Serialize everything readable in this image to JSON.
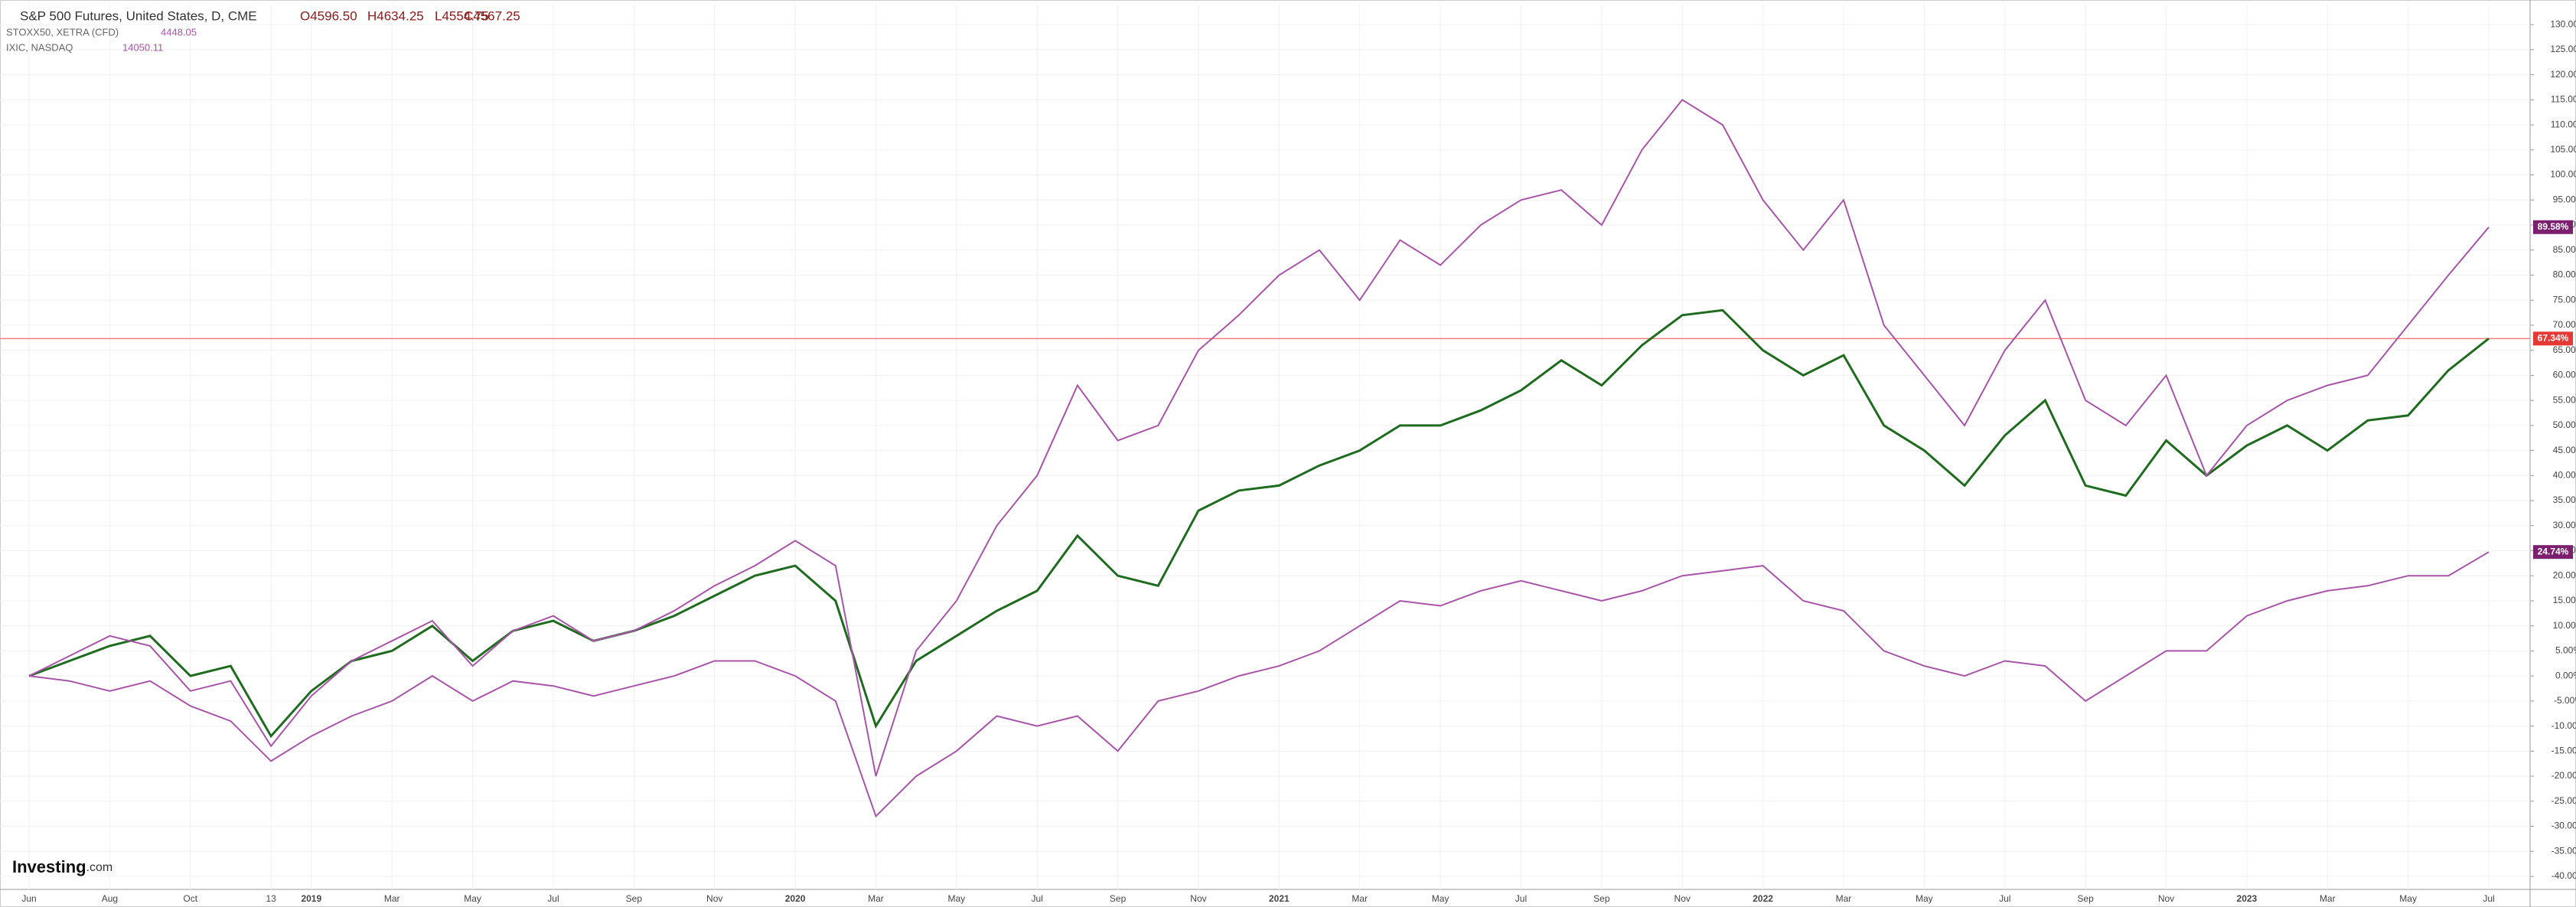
{
  "chart_data": {
    "type": "line",
    "header": {
      "title": "S&P 500 Futures, United States, D, CME",
      "open": "O4596.50",
      "high": "H4634.25",
      "low": "L4554.75",
      "close": "C4567.25",
      "stoxx_name": "STOXX50, XETRA (CFD)",
      "stoxx_price": "4448.05",
      "ixic_name": "IXIC, NASDAQ",
      "ixic_price": "14050.11"
    },
    "logo": {
      "brand": "Investing",
      "suffix": ".com"
    },
    "categories": [
      "Jun",
      null,
      "Aug",
      null,
      "Oct",
      null,
      "13",
      "2019",
      null,
      "Mar",
      null,
      "May",
      null,
      "Jul",
      null,
      "Sep",
      null,
      "Nov",
      null,
      "2020",
      null,
      "Mar",
      null,
      "May",
      null,
      "Jul",
      null,
      "Sep",
      null,
      "Nov",
      null,
      "2021",
      null,
      "Mar",
      null,
      "May",
      null,
      "Jul",
      null,
      "Sep",
      null,
      "Nov",
      null,
      "2022",
      null,
      "Mar",
      null,
      "May",
      null,
      "Jul",
      null,
      "Sep",
      null,
      "Nov",
      null,
      "2023",
      null,
      "Mar",
      null,
      "May",
      null,
      "Jul"
    ],
    "series": [
      {
        "name": "S&P 500 Futures",
        "color": "#1f6b1f",
        "last_label": "67.34%",
        "badge_color": "#e53935",
        "values": [
          0,
          3,
          6,
          8,
          0,
          2,
          -12,
          -3,
          3,
          5,
          10,
          3,
          9,
          11,
          7,
          9,
          12,
          16,
          20,
          22,
          15,
          -10,
          3,
          8,
          13,
          17,
          28,
          20,
          18,
          33,
          37,
          38,
          42,
          45,
          50,
          50,
          53,
          57,
          63,
          58,
          66,
          72,
          73,
          65,
          60,
          64,
          50,
          45,
          38,
          48,
          55,
          38,
          36,
          47,
          40,
          46,
          50,
          45,
          51,
          52,
          61,
          67.34
        ]
      },
      {
        "name": "IXIC",
        "color": "#a855a8",
        "last_label": "89.58%",
        "badge_color": "#7b1f6e",
        "values": [
          0,
          4,
          8,
          6,
          -3,
          -1,
          -14,
          -4,
          3,
          7,
          11,
          2,
          9,
          12,
          7,
          9,
          13,
          18,
          22,
          27,
          22,
          -20,
          5,
          15,
          30,
          40,
          58,
          47,
          50,
          65,
          72,
          80,
          85,
          75,
          87,
          82,
          90,
          95,
          97,
          90,
          105,
          115,
          110,
          95,
          85,
          95,
          70,
          60,
          50,
          65,
          75,
          55,
          50,
          60,
          40,
          50,
          55,
          58,
          60,
          70,
          80,
          89.58
        ]
      },
      {
        "name": "STOXX50",
        "color": "#a855a8",
        "last_label": "24.74%",
        "badge_color": "#7b1f6e",
        "values": [
          0,
          -1,
          -3,
          -1,
          -6,
          -9,
          -17,
          -12,
          -8,
          -5,
          0,
          -5,
          -1,
          -2,
          -4,
          -2,
          0,
          3,
          3,
          0,
          -5,
          -28,
          -20,
          -15,
          -8,
          -10,
          -8,
          -15,
          -5,
          -3,
          0,
          2,
          5,
          10,
          15,
          14,
          17,
          19,
          17,
          15,
          17,
          20,
          21,
          22,
          15,
          13,
          5,
          2,
          0,
          3,
          2,
          -5,
          0,
          5,
          5,
          12,
          15,
          17,
          18,
          20,
          20,
          24.74
        ]
      }
    ],
    "ylim": [
      -42.6,
      134
    ],
    "yticks": [
      {
        "value": -40,
        "label": "-40.00%"
      },
      {
        "value": -35,
        "label": "-35.00%"
      },
      {
        "value": -30,
        "label": "-30.00%"
      },
      {
        "value": -25,
        "label": "-25.00%"
      },
      {
        "value": -20,
        "label": "-20.00%"
      },
      {
        "value": -15,
        "label": "-15.00%"
      },
      {
        "value": -10,
        "label": "-10.00%"
      },
      {
        "value": -5,
        "label": "-5.00%"
      },
      {
        "value": 0,
        "label": "0.00%"
      },
      {
        "value": 5,
        "label": "5.00%"
      },
      {
        "value": 10,
        "label": "10.00%"
      },
      {
        "value": 15,
        "label": "15.00%"
      },
      {
        "value": 20,
        "label": "20.00%"
      },
      {
        "value": 25,
        "label": "25.00%"
      },
      {
        "value": 30,
        "label": "30.00%"
      },
      {
        "value": 35,
        "label": "35.00%"
      },
      {
        "value": 40,
        "label": "40.00%"
      },
      {
        "value": 45,
        "label": "45.00%"
      },
      {
        "value": 50,
        "label": "50.00%"
      },
      {
        "value": 55,
        "label": "55.00%"
      },
      {
        "value": 60,
        "label": "60.00%"
      },
      {
        "value": 65,
        "label": "65.00%"
      },
      {
        "value": 70,
        "label": "70.00%"
      },
      {
        "value": 75,
        "label": "75.00%"
      },
      {
        "value": 80,
        "label": "80.00%"
      },
      {
        "value": 85,
        "label": "85.00%"
      },
      {
        "value": 90,
        "label": "90.00%"
      },
      {
        "value": 95,
        "label": "95.00%"
      },
      {
        "value": 100,
        "label": "100.00%"
      },
      {
        "value": 105,
        "label": "105.00%"
      },
      {
        "value": 110,
        "label": "110.00%"
      },
      {
        "value": 115,
        "label": "115.00%"
      },
      {
        "value": 120,
        "label": "120.00%"
      },
      {
        "value": 125,
        "label": "125.00%"
      },
      {
        "value": 130,
        "label": "130.00%"
      }
    ],
    "grid": true
  }
}
